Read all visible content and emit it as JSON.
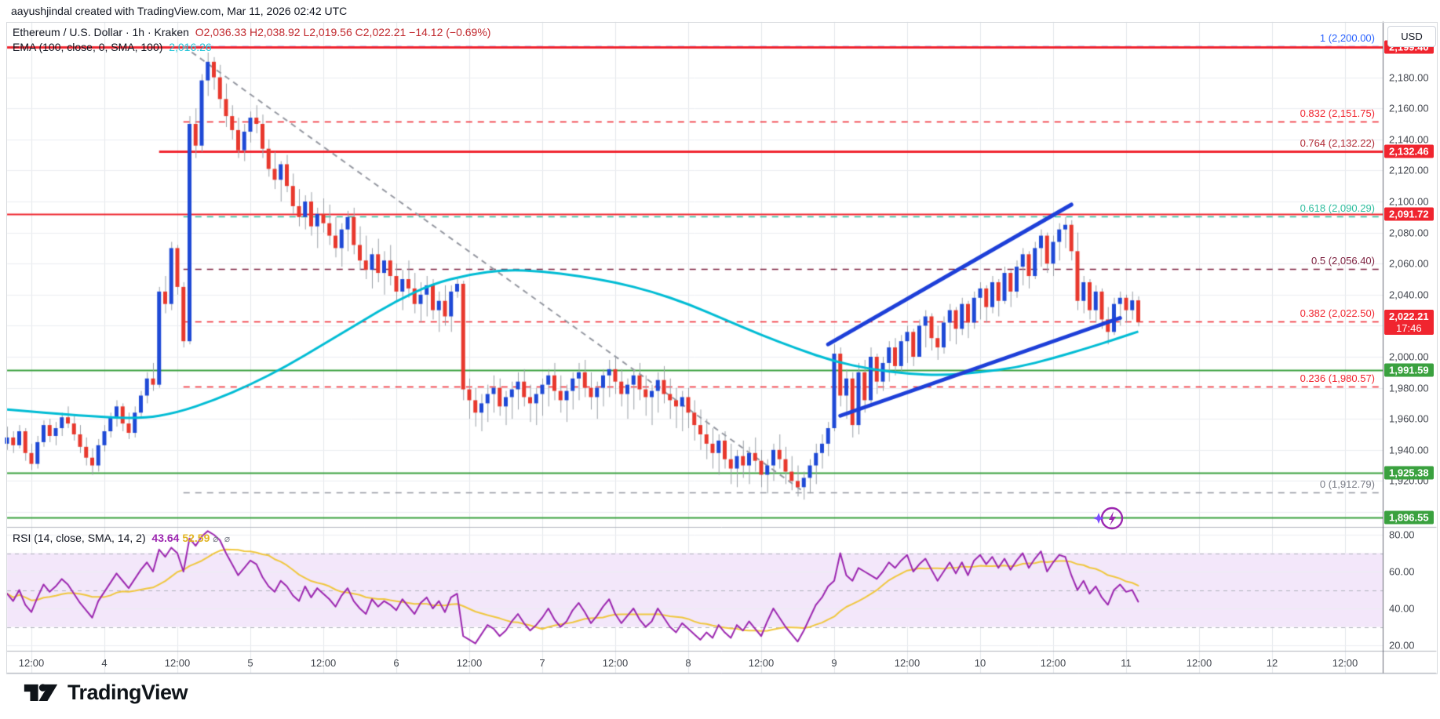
{
  "attribution": "aayushjindal created with TradingView.com, Mar 11, 2026 02:42 UTC",
  "legend": {
    "symbol": "Ethereum / U.S. Dollar",
    "interval": "1h",
    "exchange": "Kraken",
    "sep": "·",
    "o": "O2,036.33",
    "h": "H2,038.92",
    "l": "L2,019.56",
    "c": "C2,022.21",
    "change": "−14.12 (−0.69%)",
    "ema_title": "EMA (100, close, 0, SMA, 100)",
    "ema_value": "2,016.26"
  },
  "rsi_legend": {
    "title": "RSI (14, close, SMA, 14, 2)",
    "value": "43.64",
    "ma_value": "52.59",
    "icons": "⌀ ⌀"
  },
  "price_axis": {
    "currency_button": "USD",
    "ticks": [
      {
        "label": "2,180.00",
        "value": 2180
      },
      {
        "label": "2,160.00",
        "value": 2160
      },
      {
        "label": "2,140.00",
        "value": 2140
      },
      {
        "label": "2,120.00",
        "value": 2120
      },
      {
        "label": "2,100.00",
        "value": 2100
      },
      {
        "label": "2,080.00",
        "value": 2080
      },
      {
        "label": "2,060.00",
        "value": 2060
      },
      {
        "label": "2,040.00",
        "value": 2040
      },
      {
        "label": "2,000.00",
        "value": 2000
      },
      {
        "label": "1,980.00",
        "value": 1980
      },
      {
        "label": "1,960.00",
        "value": 1960
      },
      {
        "label": "1,940.00",
        "value": 1940
      },
      {
        "label": "1,920.00",
        "value": 1920
      }
    ],
    "badges": [
      {
        "label": "2,199.40",
        "sub": "",
        "price": 2199.4,
        "color": "#f0252f"
      },
      {
        "label": "2,132.46",
        "sub": "",
        "price": 2132.46,
        "color": "#f0252f"
      },
      {
        "label": "2,091.72",
        "sub": "",
        "price": 2091.72,
        "color": "#f0252f"
      },
      {
        "label": "2,022.21",
        "sub": "17:46",
        "price": 2022.21,
        "color": "#f0252f"
      },
      {
        "label": "1,991.59",
        "sub": "",
        "price": 1991.59,
        "color": "#3aa13f"
      },
      {
        "label": "1,925.38",
        "sub": "",
        "price": 1925.38,
        "color": "#3aa13f"
      },
      {
        "label": "1,896.55",
        "sub": "",
        "price": 1896.55,
        "color": "#3aa13f"
      }
    ]
  },
  "rsi_axis": {
    "ticks": [
      {
        "label": "80.00",
        "value": 80
      },
      {
        "label": "60.00",
        "value": 60
      },
      {
        "label": "40.00",
        "value": 40
      },
      {
        "label": "20.00",
        "value": 20
      }
    ]
  },
  "time_axis": {
    "labels": [
      "12:00",
      "4",
      "12:00",
      "5",
      "12:00",
      "6",
      "12:00",
      "7",
      "12:00",
      "8",
      "12:00",
      "9",
      "12:00",
      "10",
      "12:00",
      "11",
      "12:00",
      "12",
      "12:00"
    ],
    "first_index": 4,
    "step_candles": 12
  },
  "fib_levels": [
    {
      "label": "1 (2,200.00)",
      "price": 2200.0,
      "color": "#2962ff",
      "line": "#2962ff"
    },
    {
      "label": "0.832 (2,151.75)",
      "price": 2151.75,
      "color": "#f0252f",
      "line": "#f0252f"
    },
    {
      "label": "0.764 (2,132.22)",
      "price": 2132.22,
      "color": "#b02833",
      "line": "#b02833"
    },
    {
      "label": "0.618 (2,090.29)",
      "price": 2090.29,
      "color": "#2dbd9e",
      "line": "#2dbd9e"
    },
    {
      "label": "0.5 (2,056.40)",
      "price": 2056.4,
      "color": "#7c1f3e",
      "line": "#7c1f3e"
    },
    {
      "label": "0.382 (2,022.50)",
      "price": 2022.5,
      "color": "#f0252f",
      "line": "#f0252f"
    },
    {
      "label": "0.236 (1,980.57)",
      "price": 1980.57,
      "color": "#f0252f",
      "line": "#f0252f"
    },
    {
      "label": "0 (1,912.79)",
      "price": 1912.79,
      "color": "#787b86",
      "line": "#9598a1"
    }
  ],
  "horizontal_lines": {
    "resistance": [
      {
        "price": 2199.4,
        "from_idx": 0,
        "width": 3
      },
      {
        "price": 2132.46,
        "from_idx": 25,
        "width": 3
      },
      {
        "price": 2091.72,
        "from_idx": 0,
        "width": 2
      }
    ],
    "support": [
      {
        "price": 1991.59,
        "from_idx": 0,
        "width": 2
      },
      {
        "price": 1925.38,
        "from_idx": 0,
        "width": 2
      },
      {
        "price": 1896.55,
        "from_idx": 0,
        "width": 2
      }
    ]
  },
  "trendlines": {
    "gray_dashed": {
      "from": [
        29,
        2200
      ],
      "to": [
        131,
        1913
      ]
    },
    "blue_upper": {
      "from": [
        135,
        2008
      ],
      "to": [
        175,
        2098
      ]
    },
    "blue_lower": {
      "from": [
        137,
        1962
      ],
      "to": [
        183,
        2025
      ]
    }
  },
  "colors": {
    "up": "#1e49d6",
    "down": "#e8382d",
    "wick": "#9aa0a6",
    "ema": "#00bcd4",
    "trend_blue": "#1d3fd8",
    "rsi": "#9c27b0",
    "rsi_ma": "#f0c73f",
    "rsi_band_fill": "#f3e7fa",
    "resistance": "#f0252f",
    "support": "#3aa13f",
    "grid": "#eceef2",
    "grid_v": "#e4e7ec"
  },
  "footer": {
    "brand": "TradingView"
  },
  "chart_data": {
    "type": "candlestick",
    "symbol": "ETHUSD",
    "interval": "1h",
    "title": "Ethereum / U.S. Dollar · 1h · Kraken",
    "price_range_visible": [
      1890,
      2215
    ],
    "rsi_range_visible": [
      15,
      85
    ],
    "first_open": 1944,
    "note": "candles are [high, low, close]; open = previous close; last candle is the live candle O2036.33 H2038.92 L2019.56 C2022.21",
    "candles": [
      [
        1955,
        1940,
        1948
      ],
      [
        1952,
        1938,
        1943
      ],
      [
        1956,
        1941,
        1952
      ],
      [
        1954,
        1933,
        1938
      ],
      [
        1944,
        1927,
        1931
      ],
      [
        1949,
        1928,
        1945
      ],
      [
        1959,
        1942,
        1956
      ],
      [
        1960,
        1945,
        1949
      ],
      [
        1958,
        1943,
        1954
      ],
      [
        1964,
        1949,
        1961
      ],
      [
        1968,
        1954,
        1957
      ],
      [
        1962,
        1946,
        1950
      ],
      [
        1956,
        1938,
        1942
      ],
      [
        1948,
        1930,
        1935
      ],
      [
        1941,
        1924,
        1930
      ],
      [
        1947,
        1926,
        1943
      ],
      [
        1956,
        1939,
        1952
      ],
      [
        1964,
        1948,
        1961
      ],
      [
        1972,
        1955,
        1968
      ],
      [
        1970,
        1952,
        1957
      ],
      [
        1964,
        1947,
        1951
      ],
      [
        1968,
        1948,
        1964
      ],
      [
        1978,
        1960,
        1975
      ],
      [
        1990,
        1970,
        1986
      ],
      [
        1996,
        1978,
        1982
      ],
      [
        2045,
        1980,
        2042
      ],
      [
        2052,
        2028,
        2034
      ],
      [
        2074,
        2030,
        2070
      ],
      [
        2072,
        2040,
        2045
      ],
      [
        2048,
        2006,
        2010
      ],
      [
        2155,
        2008,
        2150
      ],
      [
        2160,
        2128,
        2136
      ],
      [
        2182,
        2132,
        2178
      ],
      [
        2196,
        2168,
        2190
      ],
      [
        2193,
        2172,
        2180
      ],
      [
        2188,
        2160,
        2166
      ],
      [
        2176,
        2148,
        2155
      ],
      [
        2162,
        2140,
        2146
      ],
      [
        2154,
        2128,
        2133
      ],
      [
        2150,
        2126,
        2145
      ],
      [
        2158,
        2138,
        2154
      ],
      [
        2162,
        2144,
        2150
      ],
      [
        2156,
        2128,
        2134
      ],
      [
        2140,
        2116,
        2121
      ],
      [
        2132,
        2108,
        2114
      ],
      [
        2126,
        2100,
        2124
      ],
      [
        2130,
        2106,
        2110
      ],
      [
        2118,
        2092,
        2097
      ],
      [
        2108,
        2084,
        2090
      ],
      [
        2104,
        2082,
        2100
      ],
      [
        2106,
        2078,
        2084
      ],
      [
        2096,
        2070,
        2092
      ],
      [
        2102,
        2080,
        2086
      ],
      [
        2098,
        2072,
        2078
      ],
      [
        2090,
        2064,
        2070
      ],
      [
        2086,
        2058,
        2082
      ],
      [
        2094,
        2068,
        2090
      ],
      [
        2096,
        2066,
        2072
      ],
      [
        2084,
        2056,
        2062
      ],
      [
        2078,
        2050,
        2056
      ],
      [
        2070,
        2044,
        2066
      ],
      [
        2076,
        2048,
        2054
      ],
      [
        2068,
        2040,
        2062
      ],
      [
        2072,
        2046,
        2052
      ],
      [
        2060,
        2036,
        2042
      ],
      [
        2056,
        2030,
        2050
      ],
      [
        2062,
        2038,
        2044
      ],
      [
        2054,
        2028,
        2034
      ],
      [
        2048,
        2022,
        2040
      ],
      [
        2052,
        2026,
        2046
      ],
      [
        2050,
        2024,
        2030
      ],
      [
        2042,
        2016,
        2036
      ],
      [
        2046,
        2020,
        2026
      ],
      [
        2046,
        2016,
        2042
      ],
      [
        2050,
        2038,
        2047
      ],
      [
        2049,
        1972,
        1979
      ],
      [
        1986,
        1960,
        1972
      ],
      [
        1980,
        1955,
        1964
      ],
      [
        1976,
        1952,
        1970
      ],
      [
        1982,
        1958,
        1976
      ],
      [
        1988,
        1964,
        1980
      ],
      [
        1986,
        1962,
        1968
      ],
      [
        1978,
        1956,
        1974
      ],
      [
        1984,
        1960,
        1979
      ],
      [
        1990,
        1966,
        1984
      ],
      [
        1992,
        1968,
        1974
      ],
      [
        1982,
        1958,
        1970
      ],
      [
        1980,
        1956,
        1976
      ],
      [
        1986,
        1962,
        1982
      ],
      [
        1992,
        1968,
        1988
      ],
      [
        1996,
        1972,
        1978
      ],
      [
        1988,
        1964,
        1972
      ],
      [
        1982,
        1958,
        1978
      ],
      [
        1990,
        1966,
        1986
      ],
      [
        1996,
        1972,
        1990
      ],
      [
        1998,
        1974,
        1980
      ],
      [
        1990,
        1966,
        1974
      ],
      [
        1984,
        1960,
        1980
      ],
      [
        1992,
        1968,
        1988
      ],
      [
        1998,
        1974,
        1992
      ],
      [
        2000,
        1976,
        1984
      ],
      [
        1992,
        1968,
        1976
      ],
      [
        1986,
        1960,
        1982
      ],
      [
        1992,
        1966,
        1988
      ],
      [
        1996,
        1972,
        1979
      ],
      [
        1988,
        1962,
        1974
      ],
      [
        1982,
        1956,
        1978
      ],
      [
        1990,
        1964,
        1985
      ],
      [
        1994,
        1970,
        1976
      ],
      [
        1986,
        1960,
        1972
      ],
      [
        1980,
        1954,
        1968
      ],
      [
        1978,
        1952,
        1974
      ],
      [
        1980,
        1954,
        1964
      ],
      [
        1972,
        1946,
        1956
      ],
      [
        1966,
        1940,
        1950
      ],
      [
        1960,
        1934,
        1944
      ],
      [
        1954,
        1928,
        1938
      ],
      [
        1950,
        1924,
        1946
      ],
      [
        1952,
        1928,
        1934
      ],
      [
        1944,
        1918,
        1928
      ],
      [
        1940,
        1916,
        1936
      ],
      [
        1946,
        1922,
        1930
      ],
      [
        1942,
        1918,
        1938
      ],
      [
        1948,
        1926,
        1933
      ],
      [
        1940,
        1916,
        1924
      ],
      [
        1934,
        1912,
        1930
      ],
      [
        1944,
        1920,
        1940
      ],
      [
        1950,
        1928,
        1934
      ],
      [
        1942,
        1918,
        1926
      ],
      [
        1936,
        1914,
        1920
      ],
      [
        1930,
        1910,
        1916
      ],
      [
        1926,
        1908,
        1922
      ],
      [
        1934,
        1912,
        1930
      ],
      [
        1944,
        1918,
        1938
      ],
      [
        1950,
        1928,
        1944
      ],
      [
        1958,
        1936,
        1954
      ],
      [
        2008,
        1952,
        2002
      ],
      [
        2006,
        1968,
        1975
      ],
      [
        1992,
        1960,
        1986
      ],
      [
        1990,
        1948,
        1956
      ],
      [
        1996,
        1950,
        1990
      ],
      [
        1998,
        1964,
        1972
      ],
      [
        2006,
        1968,
        2000
      ],
      [
        2002,
        1976,
        1984
      ],
      [
        2000,
        1978,
        1996
      ],
      [
        2010,
        1984,
        2006
      ],
      [
        2012,
        1988,
        1994
      ],
      [
        2014,
        1990,
        2010
      ],
      [
        2020,
        1996,
        2016
      ],
      [
        2018,
        1994,
        2000
      ],
      [
        2024,
        2000,
        2020
      ],
      [
        2030,
        2006,
        2026
      ],
      [
        2028,
        2004,
        2012
      ],
      [
        2020,
        1998,
        2006
      ],
      [
        2026,
        2002,
        2022
      ],
      [
        2034,
        2010,
        2030
      ],
      [
        2032,
        2008,
        2018
      ],
      [
        2038,
        2014,
        2034
      ],
      [
        2036,
        2012,
        2022
      ],
      [
        2042,
        2018,
        2038
      ],
      [
        2048,
        2024,
        2044
      ],
      [
        2046,
        2022,
        2032
      ],
      [
        2052,
        2028,
        2048
      ],
      [
        2050,
        2026,
        2036
      ],
      [
        2058,
        2034,
        2054
      ],
      [
        2056,
        2032,
        2042
      ],
      [
        2062,
        2038,
        2058
      ],
      [
        2070,
        2046,
        2066
      ],
      [
        2068,
        2044,
        2052
      ],
      [
        2074,
        2050,
        2070
      ],
      [
        2082,
        2058,
        2078
      ],
      [
        2080,
        2054,
        2060
      ],
      [
        2078,
        2052,
        2074
      ],
      [
        2086,
        2062,
        2082
      ],
      [
        2090,
        2070,
        2085
      ],
      [
        2088,
        2062,
        2068
      ],
      [
        2080,
        2030,
        2036
      ],
      [
        2052,
        2028,
        2048
      ],
      [
        2050,
        2024,
        2030
      ],
      [
        2046,
        2022,
        2042
      ],
      [
        2044,
        2018,
        2024
      ],
      [
        2032,
        2008,
        2016
      ],
      [
        2038,
        2014,
        2034
      ],
      [
        2042,
        2020,
        2038
      ],
      [
        2040,
        2022,
        2030
      ],
      [
        2042,
        2024,
        2036.33
      ],
      [
        2038.92,
        2019.56,
        2022.21
      ]
    ],
    "ema_points": [
      [
        0,
        1966
      ],
      [
        12,
        1962
      ],
      [
        22,
        1960
      ],
      [
        28,
        1964
      ],
      [
        34,
        1972
      ],
      [
        40,
        1982
      ],
      [
        46,
        1994
      ],
      [
        52,
        2008
      ],
      [
        58,
        2022
      ],
      [
        64,
        2036
      ],
      [
        70,
        2047
      ],
      [
        76,
        2053
      ],
      [
        82,
        2056
      ],
      [
        88,
        2055
      ],
      [
        94,
        2052
      ],
      [
        100,
        2048
      ],
      [
        106,
        2042
      ],
      [
        112,
        2034
      ],
      [
        118,
        2024
      ],
      [
        124,
        2014
      ],
      [
        130,
        2005
      ],
      [
        136,
        1997
      ],
      [
        142,
        1992
      ],
      [
        148,
        1989
      ],
      [
        154,
        1988
      ],
      [
        160,
        1990
      ],
      [
        166,
        1993
      ],
      [
        172,
        1999
      ],
      [
        178,
        2006
      ],
      [
        182,
        2011
      ],
      [
        186,
        2016.26
      ]
    ],
    "rsi": [
      48,
      44,
      50,
      42,
      38,
      46,
      53,
      49,
      52,
      56,
      53,
      48,
      43,
      39,
      35,
      44,
      49,
      54,
      59,
      55,
      51,
      56,
      61,
      65,
      60,
      72,
      68,
      73,
      70,
      60,
      78,
      74,
      79,
      82,
      80,
      77,
      70,
      64,
      58,
      62,
      66,
      64,
      57,
      52,
      49,
      55,
      52,
      47,
      44,
      52,
      46,
      51,
      48,
      45,
      41,
      47,
      51,
      44,
      40,
      37,
      45,
      41,
      44,
      42,
      39,
      45,
      41,
      37,
      43,
      46,
      40,
      44,
      38,
      46,
      48,
      25,
      23,
      21,
      26,
      31,
      29,
      25,
      28,
      33,
      37,
      32,
      28,
      31,
      35,
      40,
      34,
      30,
      33,
      39,
      43,
      38,
      32,
      36,
      41,
      45,
      37,
      32,
      36,
      40,
      34,
      30,
      33,
      40,
      35,
      30,
      27,
      32,
      29,
      26,
      23,
      27,
      24,
      31,
      27,
      24,
      31,
      28,
      33,
      29,
      25,
      33,
      40,
      35,
      30,
      26,
      22,
      28,
      35,
      42,
      46,
      52,
      55,
      70,
      58,
      55,
      62,
      60,
      58,
      56,
      60,
      65,
      62,
      66,
      69,
      60,
      64,
      67,
      61,
      55,
      60,
      65,
      59,
      65,
      58,
      66,
      69,
      64,
      68,
      62,
      67,
      61,
      66,
      70,
      62,
      67,
      71,
      60,
      65,
      69,
      68,
      58,
      50,
      55,
      48,
      52,
      46,
      42,
      50,
      53,
      49,
      50,
      43.64
    ],
    "rsi_band": [
      30,
      70
    ],
    "rsi_mid": 50
  }
}
